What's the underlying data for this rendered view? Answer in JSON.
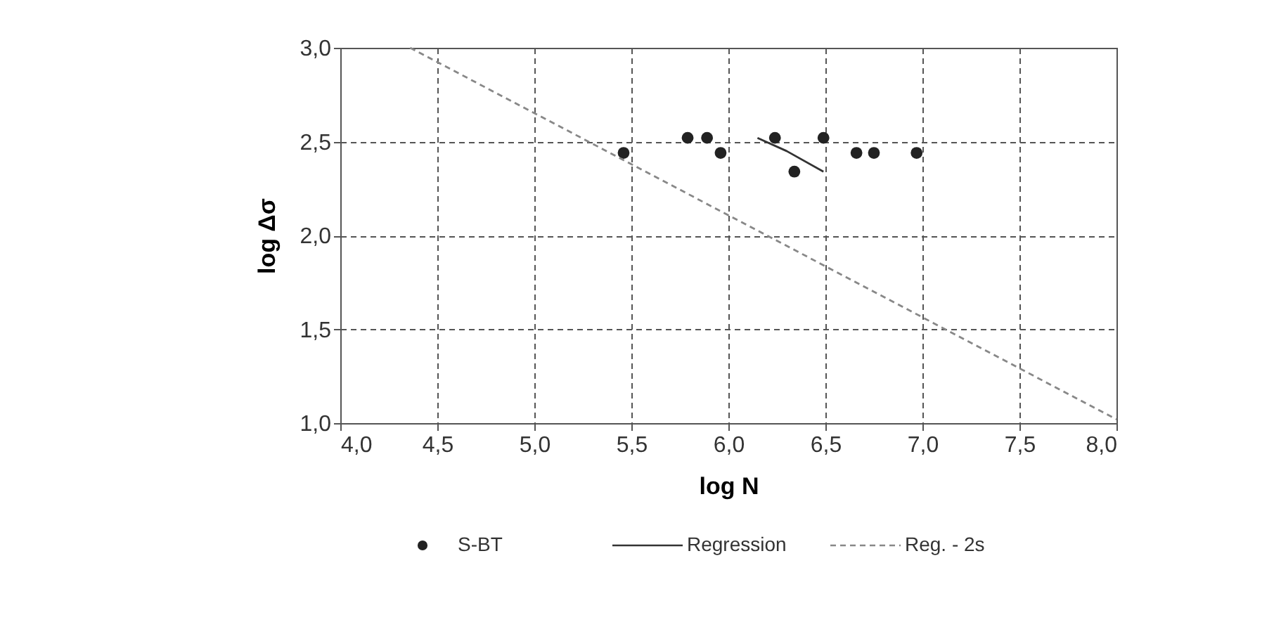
{
  "chart_data": {
    "type": "scatter",
    "xlabel": "log N",
    "ylabel": "log Δσ",
    "xlim": [
      4.0,
      8.0
    ],
    "ylim": [
      1.0,
      3.0
    ],
    "xticks": [
      {
        "value": 4,
        "label": "4,0"
      },
      {
        "value": 4.5,
        "label": "4,5"
      },
      {
        "value": 5,
        "label": "5,0"
      },
      {
        "value": 5.5,
        "label": "5,5"
      },
      {
        "value": 6,
        "label": "6,0"
      },
      {
        "value": 6.5,
        "label": "6,5"
      },
      {
        "value": 7,
        "label": "7,0"
      },
      {
        "value": 7.5,
        "label": "7,5"
      },
      {
        "value": 8,
        "label": "8,0"
      }
    ],
    "yticks": [
      {
        "value": 1,
        "label": "1,0"
      },
      {
        "value": 1.5,
        "label": "1,5"
      },
      {
        "value": 2,
        "label": "2,0"
      },
      {
        "value": 2.5,
        "label": "2,5"
      },
      {
        "value": 3,
        "label": "3,0"
      }
    ],
    "grid": true,
    "legend": "bottom",
    "series": [
      {
        "name": "S-BT",
        "marker": "circle",
        "color": "#222222",
        "x": [
          5.46,
          5.79,
          5.89,
          5.96,
          6.24,
          6.34,
          6.49,
          6.66,
          6.75,
          6.97
        ],
        "values": [
          2.44,
          2.52,
          2.52,
          2.44,
          2.52,
          2.34,
          2.52,
          2.44,
          2.44,
          2.44
        ]
      },
      {
        "name": "Regression",
        "type": "line",
        "line_style": "solid",
        "color": "#333333",
        "x": [
          6.15,
          6.3,
          6.49
        ],
        "values": [
          2.52,
          2.45,
          2.34
        ]
      },
      {
        "name": "Reg. - 2s",
        "type": "line",
        "line_style": "dashed",
        "color": "#888888",
        "x": [
          4.36,
          8.0
        ],
        "values": [
          3.0,
          1.02
        ]
      }
    ]
  }
}
